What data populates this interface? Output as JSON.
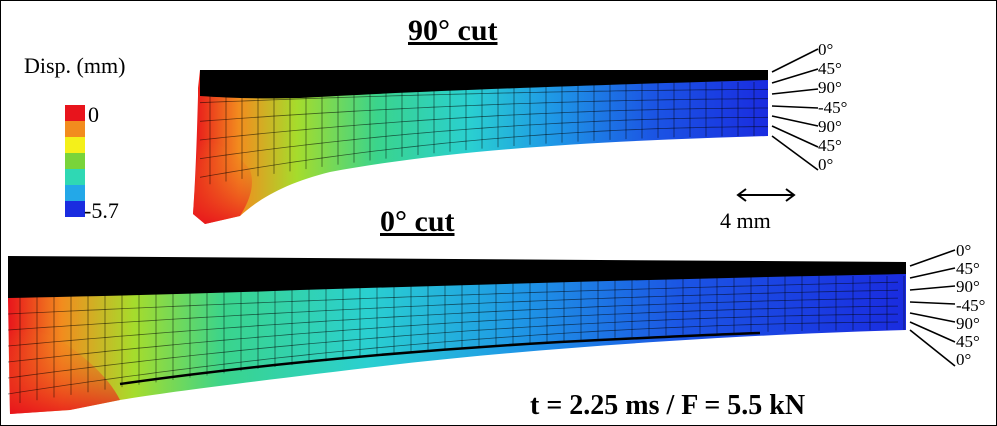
{
  "top_panel": {
    "title": "90° cut",
    "plies": [
      "0°",
      "45°",
      "90°",
      "-45°",
      "90°",
      "45°",
      "0°"
    ]
  },
  "bottom_panel": {
    "title": "0° cut",
    "plies": [
      "0°",
      "45°",
      "90°",
      "-45°",
      "90°",
      "45°",
      "0°"
    ]
  },
  "legend": {
    "title": "Disp. (mm)",
    "max_label": "0",
    "min_label": "-5.7",
    "colors": [
      "#e8141c",
      "#f28c1e",
      "#f4f01a",
      "#79d43a",
      "#2fd8b4",
      "#23a8e8",
      "#1a2ce0"
    ]
  },
  "scale_bar": {
    "label": "4 mm"
  },
  "status": "t = 2.25 ms / F = 5.5 kN"
}
